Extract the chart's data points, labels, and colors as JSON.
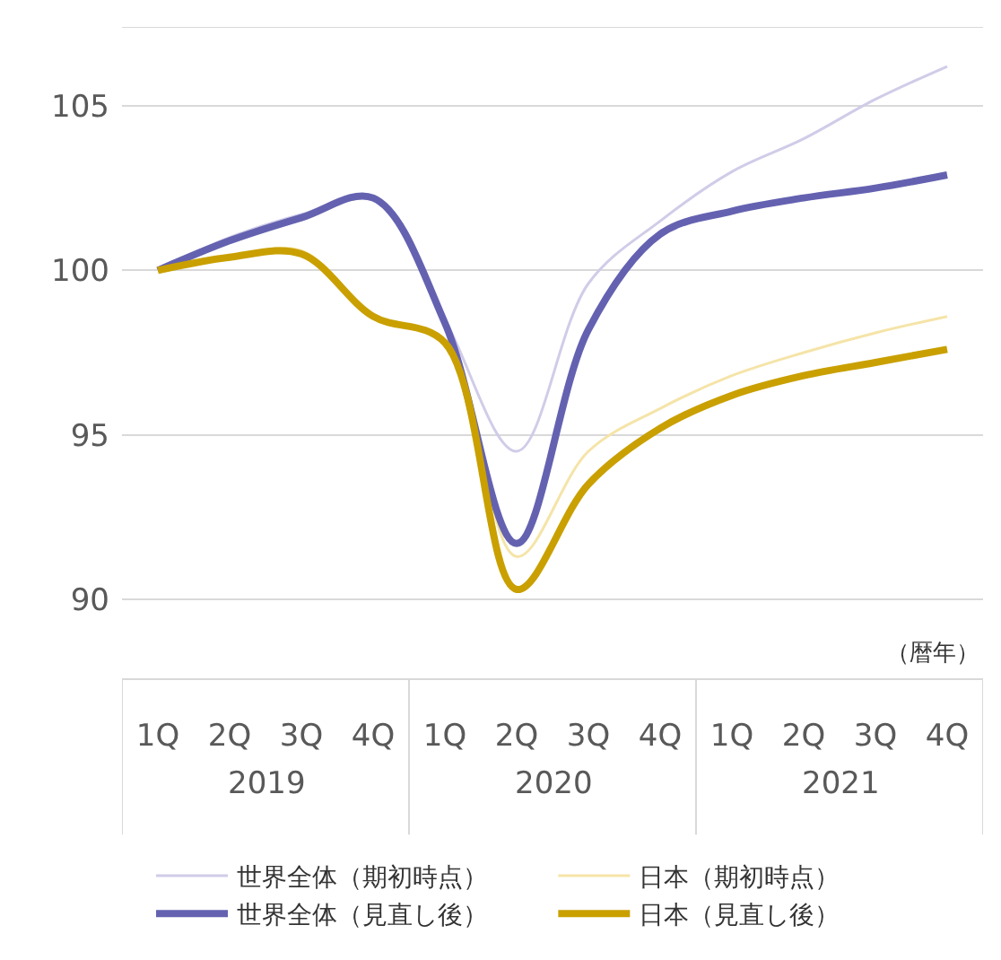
{
  "chart_data": {
    "type": "line",
    "categories": [
      "1Q",
      "2Q",
      "3Q",
      "4Q",
      "1Q",
      "2Q",
      "3Q",
      "4Q",
      "1Q",
      "2Q",
      "3Q",
      "4Q"
    ],
    "series": [
      {
        "name": "世界全体（期初時点）",
        "color": "#d0cce8",
        "values": [
          100,
          101.0,
          101.7,
          102.2,
          98.5,
          94.5,
          99.6,
          101.5,
          103.0,
          104.0,
          105.2,
          106.2
        ]
      },
      {
        "name": "日本（期初時点）",
        "color": "#f5e4a8",
        "values": [
          100,
          100.4,
          100.6,
          98.6,
          97.8,
          91.3,
          94.5,
          95.8,
          96.8,
          97.5,
          98.1,
          98.6
        ]
      },
      {
        "name": "世界全体（見直し後）",
        "color": "#6462b0",
        "values": [
          100,
          100.9,
          101.6,
          102.2,
          98.4,
          91.7,
          98.2,
          101.1,
          101.8,
          102.2,
          102.5,
          102.9
        ]
      },
      {
        "name": "日本（見直し後）",
        "color": "#c9a000",
        "values": [
          100,
          100.4,
          100.5,
          98.6,
          97.8,
          90.3,
          93.5,
          95.2,
          96.2,
          96.8,
          97.2,
          97.6
        ]
      }
    ],
    "ylim": [
      87.6,
      107.4
    ],
    "yticks": [
      90,
      95,
      100,
      105
    ],
    "grid": "y",
    "legend": "bottom",
    "marker": "none",
    "line_style": "solid",
    "annotations": [
      "（暦年）",
      "2019",
      "2020",
      "2021"
    ]
  }
}
